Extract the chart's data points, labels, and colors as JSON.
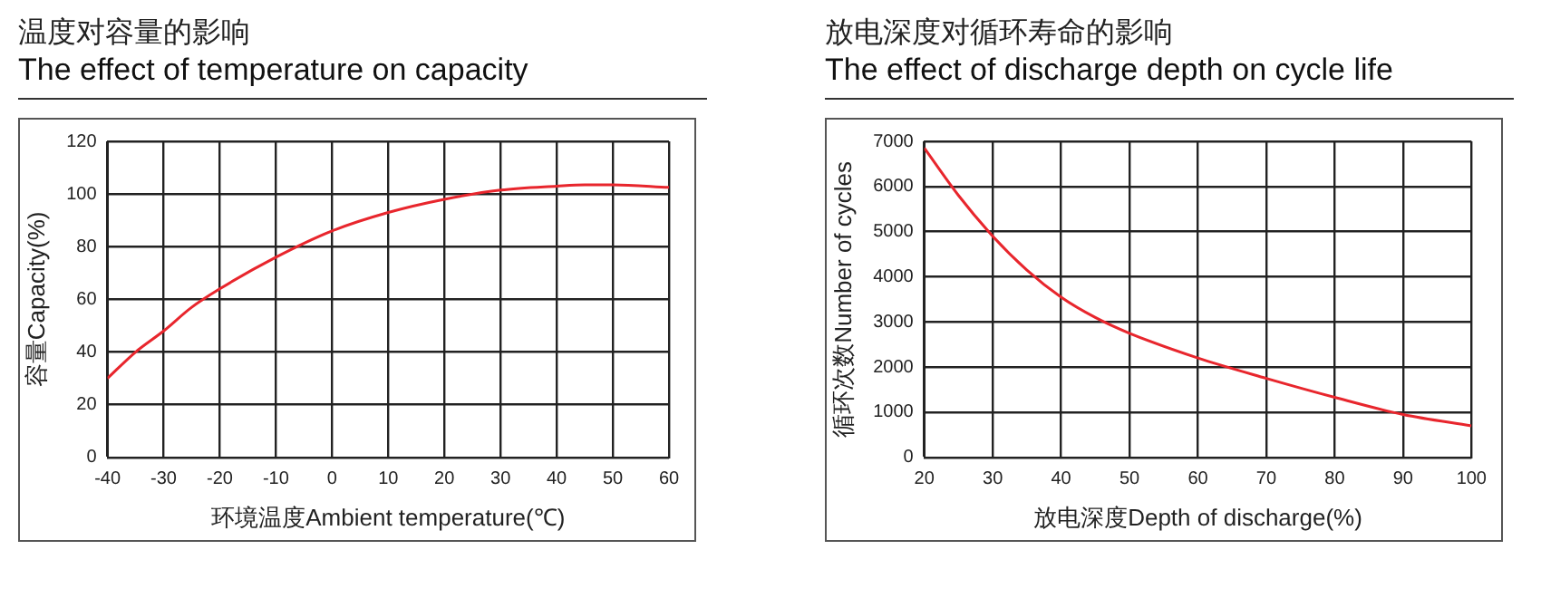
{
  "chart_data": [
    {
      "type": "line",
      "title": "温度对容量的影响",
      "subtitle": "The effect of temperature on capacity",
      "xlabel": "环境温度Ambient temperature(℃)",
      "ylabel": "容量Capacity(%)",
      "x": [
        -40,
        -35,
        -30,
        -25,
        -20,
        -10,
        0,
        10,
        20,
        30,
        40,
        45,
        50,
        60
      ],
      "values": [
        30,
        40,
        48,
        57,
        64,
        76,
        86,
        93,
        98,
        101.5,
        103,
        103.5,
        103.5,
        102.5
      ],
      "color": "#e8262d",
      "xlim": [
        -40,
        60
      ],
      "xticks": [
        -40,
        -30,
        -20,
        -10,
        0,
        10,
        20,
        30,
        40,
        50,
        60
      ],
      "ylim": [
        0,
        120
      ],
      "yticks": [
        0,
        20,
        40,
        60,
        80,
        100,
        120
      ],
      "grid": true,
      "marker": "none",
      "line_style": "solid"
    },
    {
      "type": "line",
      "title": "放电深度对循环寿命的影响",
      "subtitle": "The effect of discharge depth on cycle life",
      "xlabel": "放电深度Depth of discharge(%)",
      "ylabel": "循环次数Number of cycles",
      "x": [
        20,
        25,
        30,
        35,
        40,
        45,
        50,
        60,
        70,
        80,
        90,
        100
      ],
      "values": [
        6850,
        5800,
        4900,
        4150,
        3550,
        3100,
        2750,
        2200,
        1750,
        1330,
        950,
        700
      ],
      "color": "#e8262d",
      "xlim": [
        20,
        100
      ],
      "xticks": [
        20,
        30,
        40,
        50,
        60,
        70,
        80,
        90,
        100
      ],
      "ylim": [
        0,
        7000
      ],
      "yticks": [
        0,
        1000,
        2000,
        3000,
        4000,
        5000,
        6000,
        7000
      ],
      "grid": true,
      "marker": "none",
      "line_style": "solid"
    }
  ]
}
